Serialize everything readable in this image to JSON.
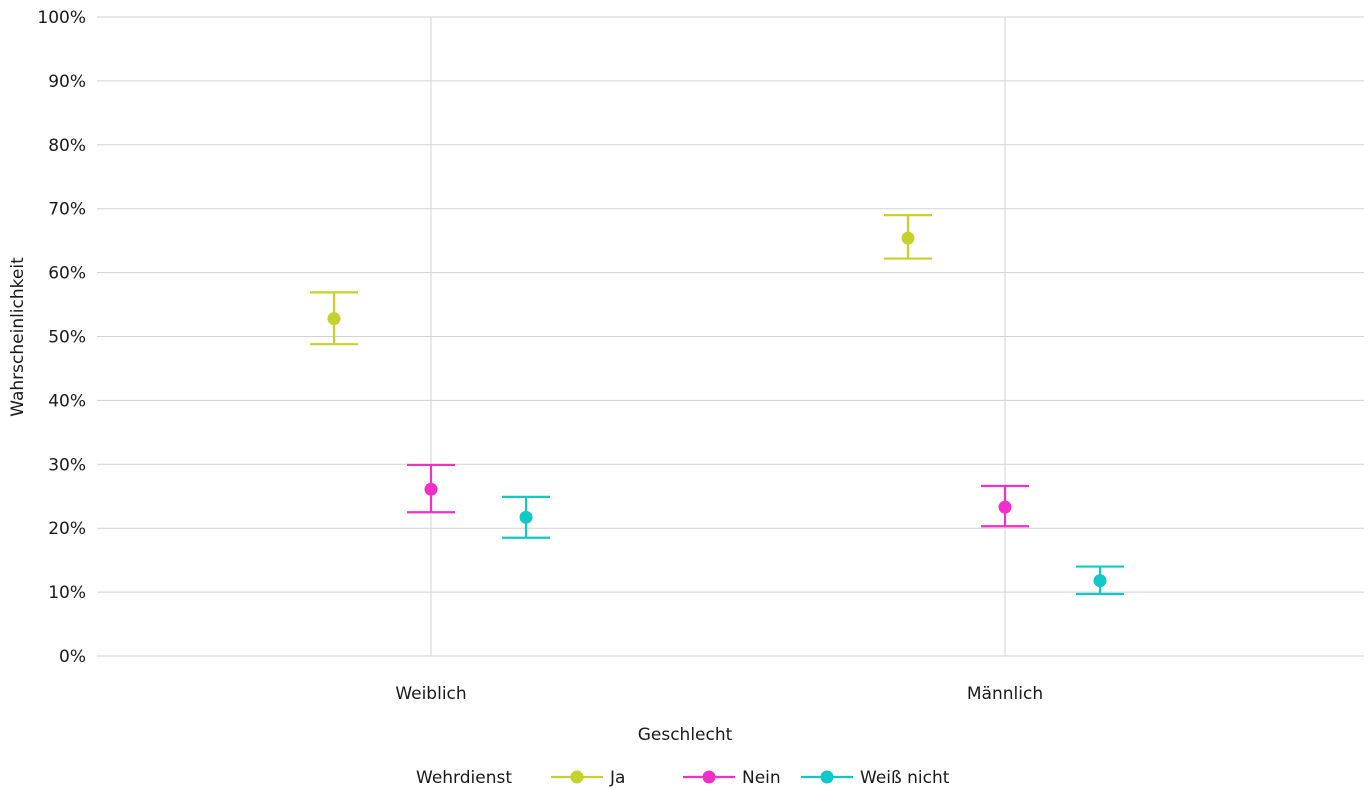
{
  "chart_data": {
    "type": "scatter",
    "subtype": "point-with-error-bars",
    "categories": [
      "Weiblich",
      "Männlich"
    ],
    "xlabel": "Geschlecht",
    "ylabel": "Wahrscheinlichkeit",
    "ylim": [
      0,
      1
    ],
    "yticks": [
      "0%",
      "10%",
      "20%",
      "30%",
      "40%",
      "50%",
      "60%",
      "70%",
      "80%",
      "90%",
      "100%"
    ],
    "grid": true,
    "legend": {
      "title": "Wehrdienst",
      "position": "bottom"
    },
    "series": [
      {
        "name": "Ja",
        "color": "#c5d12c",
        "values": [
          0.528,
          0.654
        ],
        "lower": [
          0.488,
          0.622
        ],
        "upper": [
          0.569,
          0.69
        ]
      },
      {
        "name": "Nein",
        "color": "#f22fc9",
        "values": [
          0.261,
          0.233
        ],
        "lower": [
          0.225,
          0.203
        ],
        "upper": [
          0.299,
          0.266
        ]
      },
      {
        "name": "Weiß nicht",
        "color": "#10c9c6",
        "values": [
          0.217,
          0.118
        ],
        "lower": [
          0.185,
          0.097
        ],
        "upper": [
          0.249,
          0.14
        ]
      }
    ]
  }
}
